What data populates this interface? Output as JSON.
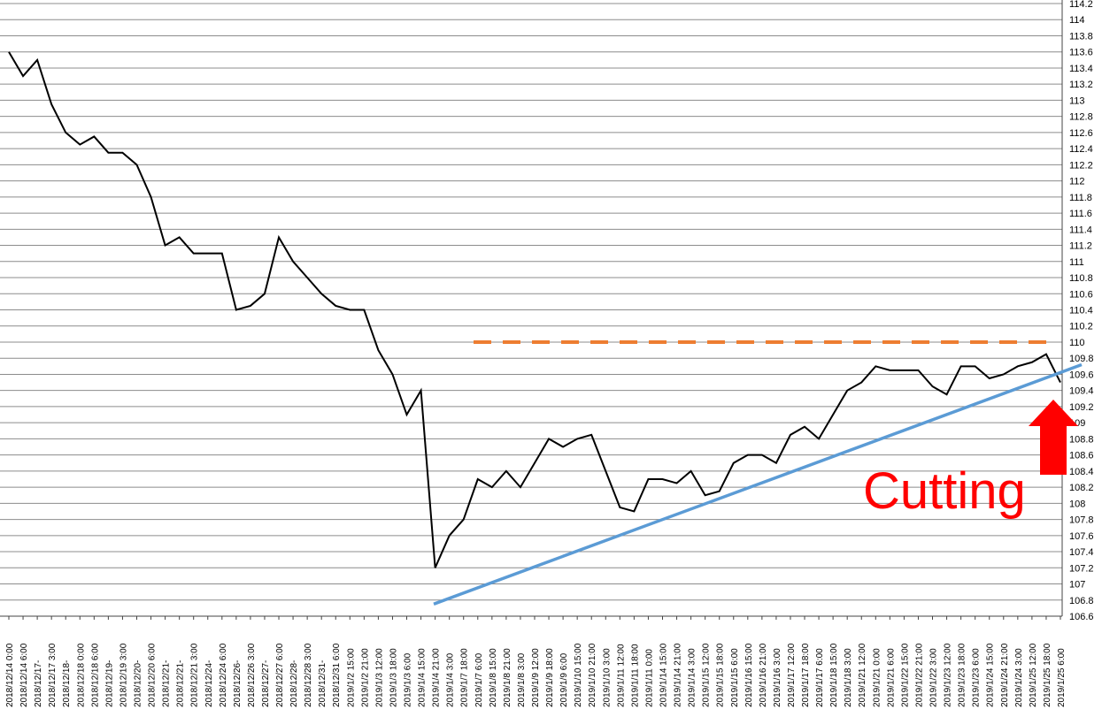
{
  "chart_data": {
    "type": "line",
    "color": "#000000",
    "categories": [
      "2018/12/14 0:00",
      "2018/12/14 6:00",
      "2018/12/17-",
      "2018/12/17 3:00",
      "2018/12/18-",
      "2018/12/18 0:00",
      "2018/12/18 6:00",
      "2018/12/19-",
      "2018/12/19 3:00",
      "2018/12/20-",
      "2018/12/20 6:00",
      "2018/12/21-",
      "2018/12/21-",
      "2018/12/21 3:00",
      "2018/12/24-",
      "2018/12/24 6:00",
      "2018/12/26-",
      "2018/12/26 3:00",
      "2018/12/27-",
      "2018/12/27 6:00",
      "2018/12/28-",
      "2018/12/28 3:00",
      "2018/12/31-",
      "2018/12/31 6:00",
      "2019/1/2 15:00",
      "2019/1/2 21:00",
      "2019/1/3 12:00",
      "2019/1/3 18:00",
      "2019/1/3 6:00",
      "2019/1/4 15:00",
      "2019/1/4 21:00",
      "2019/1/4 3:00",
      "2019/1/7 18:00",
      "2019/1/7 6:00",
      "2019/1/8 15:00",
      "2019/1/8 21:00",
      "2019/1/8 3:00",
      "2019/1/9 12:00",
      "2019/1/9 18:00",
      "2019/1/9 6:00",
      "2019/1/10 15:00",
      "2019/1/10 21:00",
      "2019/1/10 3:00",
      "2019/1/11 12:00",
      "2019/1/11 18:00",
      "2019/1/11 0:00",
      "2019/1/14 15:00",
      "2019/1/14 21:00",
      "2019/1/14 3:00",
      "2019/1/15 12:00",
      "2019/1/15 18:00",
      "2019/1/15 6:00",
      "2019/1/16 15:00",
      "2019/1/16 21:00",
      "2019/1/16 3:00",
      "2019/1/17 12:00",
      "2019/1/17 18:00",
      "2019/1/17 6:00",
      "2019/1/18 15:00",
      "2019/1/18 3:00",
      "2019/1/21 12:00",
      "2019/1/21 0:00",
      "2019/1/21 6:00",
      "2019/1/22 15:00",
      "2019/1/22 21:00",
      "2019/1/22 3:00",
      "2019/1/23 12:00",
      "2019/1/23 18:00",
      "2019/1/23 6:00",
      "2019/1/24 15:00",
      "2019/1/24 21:00",
      "2019/1/24 3:00",
      "2019/1/25 12:00",
      "2019/1/25 18:00",
      "2019/1/25 6:00"
    ],
    "values": [
      113.6,
      113.3,
      113.5,
      112.95,
      112.6,
      112.45,
      112.55,
      112.35,
      112.35,
      112.2,
      111.8,
      111.2,
      111.3,
      111.1,
      111.1,
      111.1,
      110.4,
      110.45,
      110.6,
      111.3,
      111.0,
      110.8,
      110.6,
      110.45,
      110.4,
      110.4,
      109.9,
      109.6,
      109.1,
      109.4,
      107.2,
      107.6,
      107.8,
      108.3,
      108.2,
      108.4,
      108.2,
      108.5,
      108.8,
      108.7,
      108.8,
      108.85,
      108.4,
      107.95,
      107.9,
      108.3,
      108.3,
      108.25,
      108.4,
      108.1,
      108.15,
      108.5,
      108.6,
      108.6,
      108.5,
      108.85,
      108.95,
      108.8,
      109.1,
      109.4,
      109.5,
      109.7,
      109.65,
      109.65,
      109.65,
      109.45,
      109.35,
      109.7,
      109.7,
      109.55,
      109.6,
      109.7,
      109.75,
      109.85,
      109.5
    ],
    "ylim": [
      106.6,
      114.2
    ],
    "yticks": [
      106.6,
      106.8,
      107,
      107.2,
      107.4,
      107.6,
      107.8,
      108,
      108.2,
      108.4,
      108.6,
      108.8,
      109,
      109.2,
      109.4,
      109.6,
      109.8,
      110,
      110.2,
      110.4,
      110.6,
      110.8,
      111,
      111.2,
      111.4,
      111.6,
      111.8,
      112,
      112.2,
      112.4,
      112.6,
      112.8,
      113,
      113.2,
      113.4,
      113.6,
      113.8,
      114,
      114.2
    ],
    "grid": true,
    "resistance": {
      "value": 110,
      "color": "#ed7d31"
    },
    "trendline": {
      "values": [
        106.75,
        109.72
      ],
      "color": "#5b9bd5"
    },
    "annotation": {
      "text": "Cutting",
      "color": "#ff0000"
    }
  }
}
